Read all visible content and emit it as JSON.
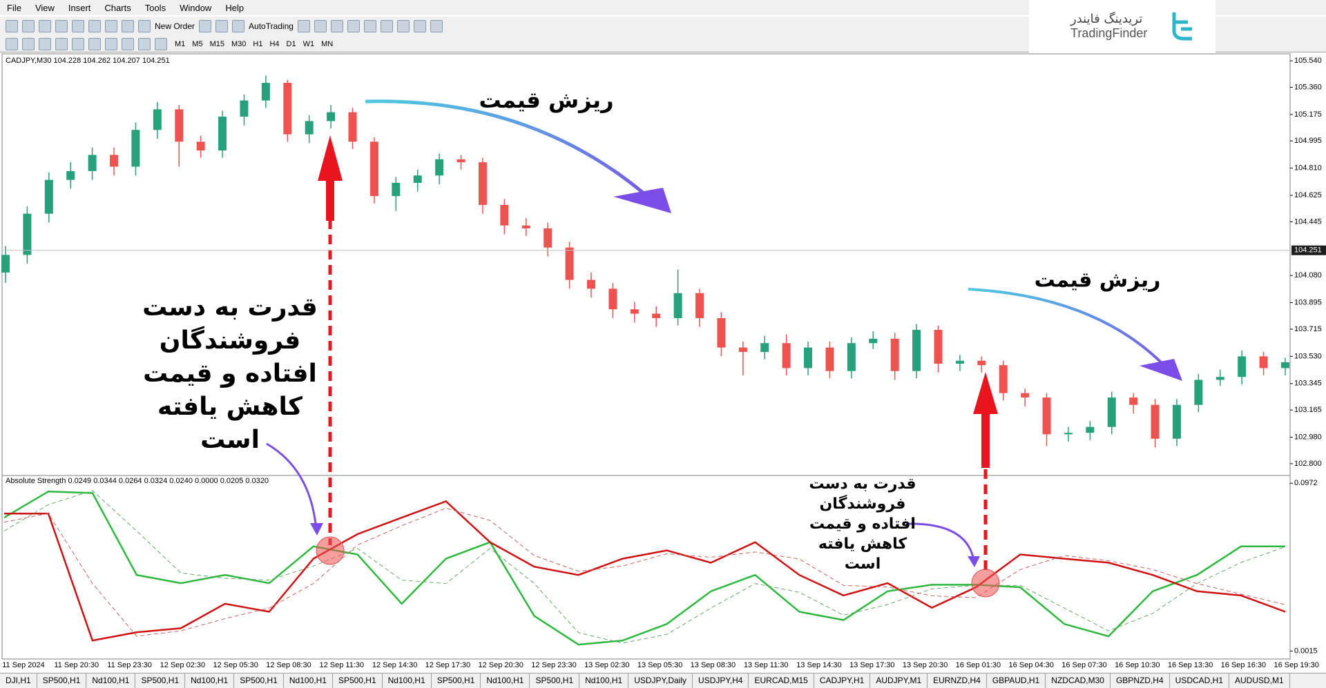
{
  "menu": [
    "File",
    "View",
    "Insert",
    "Charts",
    "Tools",
    "Window",
    "Help"
  ],
  "toolbar": {
    "new_order": "New Order",
    "auto_trading": "AutoTrading",
    "timeframes": [
      "M1",
      "M5",
      "M15",
      "M30",
      "H1",
      "H4",
      "D1",
      "W1",
      "MN"
    ]
  },
  "logo": {
    "fa": "تریدینگ فایندر",
    "en": "TradingFinder"
  },
  "chart": {
    "type": "candlestick",
    "header": "CADJPY,M30  104.228 104.262 104.207 104.251",
    "open": [
      104.1,
      104.22,
      104.5,
      104.73,
      104.79,
      104.9,
      104.82,
      105.07,
      105.21,
      104.99,
      104.93,
      105.16,
      105.27,
      105.39,
      105.04,
      105.13,
      105.19,
      104.99,
      104.62,
      104.71,
      104.76,
      104.87,
      104.85,
      104.56,
      104.42,
      104.4,
      104.27,
      104.05,
      103.99,
      103.85,
      103.82,
      103.79,
      103.96,
      103.79,
      103.59,
      103.56,
      103.62,
      103.45,
      103.59,
      103.43,
      103.62,
      103.65,
      103.43,
      103.71,
      103.48,
      103.5,
      103.47,
      103.28,
      103.25,
      103.0,
      103.01,
      103.05,
      103.25,
      103.2,
      102.97,
      103.2,
      103.37,
      103.39,
      103.53,
      103.45
    ],
    "high": [
      104.28,
      104.55,
      104.78,
      104.85,
      104.95,
      104.95,
      105.12,
      105.26,
      105.24,
      105.03,
      105.2,
      105.31,
      105.44,
      105.41,
      105.17,
      105.24,
      105.22,
      105.02,
      104.75,
      104.8,
      104.91,
      104.9,
      104.88,
      104.6,
      104.47,
      104.44,
      104.31,
      104.1,
      104.03,
      103.9,
      103.87,
      104.12,
      103.99,
      103.83,
      103.63,
      103.67,
      103.68,
      103.63,
      103.63,
      103.66,
      103.7,
      103.69,
      103.75,
      103.74,
      103.54,
      103.53,
      103.5,
      103.31,
      103.28,
      103.05,
      103.09,
      103.29,
      103.28,
      103.24,
      103.24,
      103.41,
      103.44,
      103.57,
      103.56,
      103.52
    ],
    "low": [
      104.03,
      104.16,
      104.44,
      104.67,
      104.73,
      104.76,
      104.76,
      105.01,
      104.82,
      104.88,
      104.88,
      105.1,
      105.22,
      104.99,
      104.98,
      105.08,
      104.94,
      104.57,
      104.52,
      104.65,
      104.7,
      104.8,
      104.5,
      104.36,
      104.35,
      104.21,
      103.99,
      103.93,
      103.79,
      103.76,
      103.73,
      103.74,
      103.73,
      103.53,
      103.4,
      103.51,
      103.4,
      103.4,
      103.38,
      103.38,
      103.58,
      103.37,
      103.38,
      103.42,
      103.43,
      103.42,
      103.23,
      103.19,
      102.92,
      102.95,
      102.96,
      103.0,
      103.14,
      102.91,
      102.92,
      103.15,
      103.33,
      103.34,
      103.4,
      103.4
    ],
    "close": [
      104.22,
      104.5,
      104.73,
      104.79,
      104.9,
      104.82,
      105.07,
      105.21,
      104.99,
      104.93,
      105.16,
      105.27,
      105.39,
      105.04,
      105.13,
      105.19,
      104.99,
      104.62,
      104.71,
      104.76,
      104.87,
      104.85,
      104.56,
      104.42,
      104.4,
      104.27,
      104.05,
      103.99,
      103.85,
      103.82,
      103.79,
      103.96,
      103.79,
      103.59,
      103.56,
      103.62,
      103.45,
      103.59,
      103.43,
      103.62,
      103.65,
      103.43,
      103.71,
      103.48,
      103.5,
      103.47,
      103.28,
      103.25,
      103.0,
      103.01,
      103.05,
      103.25,
      103.2,
      102.97,
      103.2,
      103.37,
      103.39,
      103.53,
      103.45,
      103.49
    ],
    "up_color": "#26a17b",
    "down_color": "#ef5350",
    "ylim": [
      102.734,
      105.578
    ],
    "yticks": [
      {
        "value": 105.54,
        "label": "105.540"
      },
      {
        "value": 105.36,
        "label": "105.360"
      },
      105.175,
      104.995,
      {
        "value": 104.81,
        "label": "104.810"
      },
      104.625,
      104.445,
      {
        "value": 104.08,
        "label": "104.080"
      },
      103.895,
      103.715,
      {
        "value": 103.53,
        "label": "103.530"
      },
      103.345,
      103.165,
      {
        "value": 102.98,
        "label": "102.980"
      },
      {
        "value": 102.8,
        "label": "102.800"
      }
    ],
    "current_price": 104.251
  },
  "indicator": {
    "type": "line",
    "header": "Absolute Strength 0.0249 0.0344 0.0264 0.0324 0.0240 0.0000 0.0205 0.0320",
    "ylim": [
      0.0005,
      0.0985
    ],
    "yticks": [
      0.0972,
      0.0015
    ],
    "series": [
      {
        "color": "#2db83d",
        "dashed": false,
        "values": [
          0.0776,
          0.0925,
          0.0916,
          0.0449,
          0.0402,
          0.0449,
          0.0402,
          0.0612,
          0.0566,
          0.0285,
          0.0542,
          0.0636,
          0.0215,
          0.0052,
          0.0075,
          0.0169,
          0.0356,
          0.0449,
          0.0239,
          0.0192,
          0.0356,
          0.0393,
          0.0393,
          0.0379,
          0.0169,
          0.0099,
          0.0356,
          0.0449,
          0.0612,
          0.0612
        ]
      },
      {
        "color": "#d01010",
        "dashed": false,
        "values": [
          0.0799,
          0.0799,
          0.0075,
          0.0122,
          0.0145,
          0.0285,
          0.0239,
          0.0542,
          0.0682,
          0.0776,
          0.0869,
          0.0636,
          0.0496,
          0.0449,
          0.0542,
          0.0589,
          0.0519,
          0.0636,
          0.0449,
          0.0332,
          0.0402,
          0.0262,
          0.0379,
          0.0566,
          0.0542,
          0.0519,
          0.0449,
          0.0356,
          0.0332,
          0.0239
        ]
      },
      {
        "color": "#6aa86a",
        "dashed": true,
        "values": [
          0.07,
          0.085,
          0.093,
          0.07,
          0.046,
          0.043,
          0.042,
          0.05,
          0.06,
          0.042,
          0.04,
          0.06,
          0.04,
          0.012,
          0.006,
          0.011,
          0.026,
          0.04,
          0.035,
          0.022,
          0.028,
          0.037,
          0.039,
          0.039,
          0.026,
          0.013,
          0.023,
          0.04,
          0.052,
          0.061
        ]
      },
      {
        "color": "#c86464",
        "dashed": true,
        "values": [
          0.075,
          0.08,
          0.04,
          0.01,
          0.013,
          0.02,
          0.026,
          0.04,
          0.062,
          0.073,
          0.083,
          0.076,
          0.056,
          0.047,
          0.05,
          0.057,
          0.055,
          0.058,
          0.054,
          0.039,
          0.038,
          0.033,
          0.032,
          0.048,
          0.056,
          0.053,
          0.048,
          0.04,
          0.034,
          0.028
        ]
      }
    ]
  },
  "time_axis": [
    "11 Sep 2024",
    "11 Sep 20:30",
    "11 Sep 23:30",
    "12 Sep 02:30",
    "12 Sep 05:30",
    "12 Sep 08:30",
    "12 Sep 11:30",
    "12 Sep 14:30",
    "12 Sep 17:30",
    "12 Sep 20:30",
    "12 Sep 23:30",
    "13 Sep 02:30",
    "13 Sep 05:30",
    "13 Sep 08:30",
    "13 Sep 11:30",
    "13 Sep 14:30",
    "13 Sep 17:30",
    "13 Sep 20:30",
    "16 Sep 01:30",
    "16 Sep 04:30",
    "16 Sep 07:30",
    "16 Sep 10:30",
    "16 Sep 13:30",
    "16 Sep 16:30",
    "16 Sep 19:30"
  ],
  "annotations": {
    "drop_1": "ریزش قیمت",
    "drop_2": "ریزش قیمت",
    "note_1": [
      "قدرت به دست",
      "فروشندگان",
      "افتاده و قیمت",
      "کاهش یافته",
      "است"
    ],
    "note_2": [
      "قدرت به دست",
      "فروشندگان",
      "افتاده و قیمت",
      "کاهش یافته",
      "است"
    ]
  },
  "tabs": [
    "DJI,H1",
    "SP500,H1",
    "Nd100,H1",
    "SP500,H1",
    "Nd100,H1",
    "SP500,H1",
    "Nd100,H1",
    "SP500,H1",
    "Nd100,H1",
    "SP500,H1",
    "Nd100,H1",
    "SP500,H1",
    "Nd100,H1",
    "USDJPY,Daily",
    "USDJPY,H4",
    "EURCAD,M15",
    "CADJPY,H1",
    "AUDJPY,M1",
    "EURNZD,H4",
    "GBPAUD,H1",
    "NZDCAD,M30",
    "GBPNZD,H4",
    "USDCAD,H1",
    "AUDUSD,M1"
  ]
}
